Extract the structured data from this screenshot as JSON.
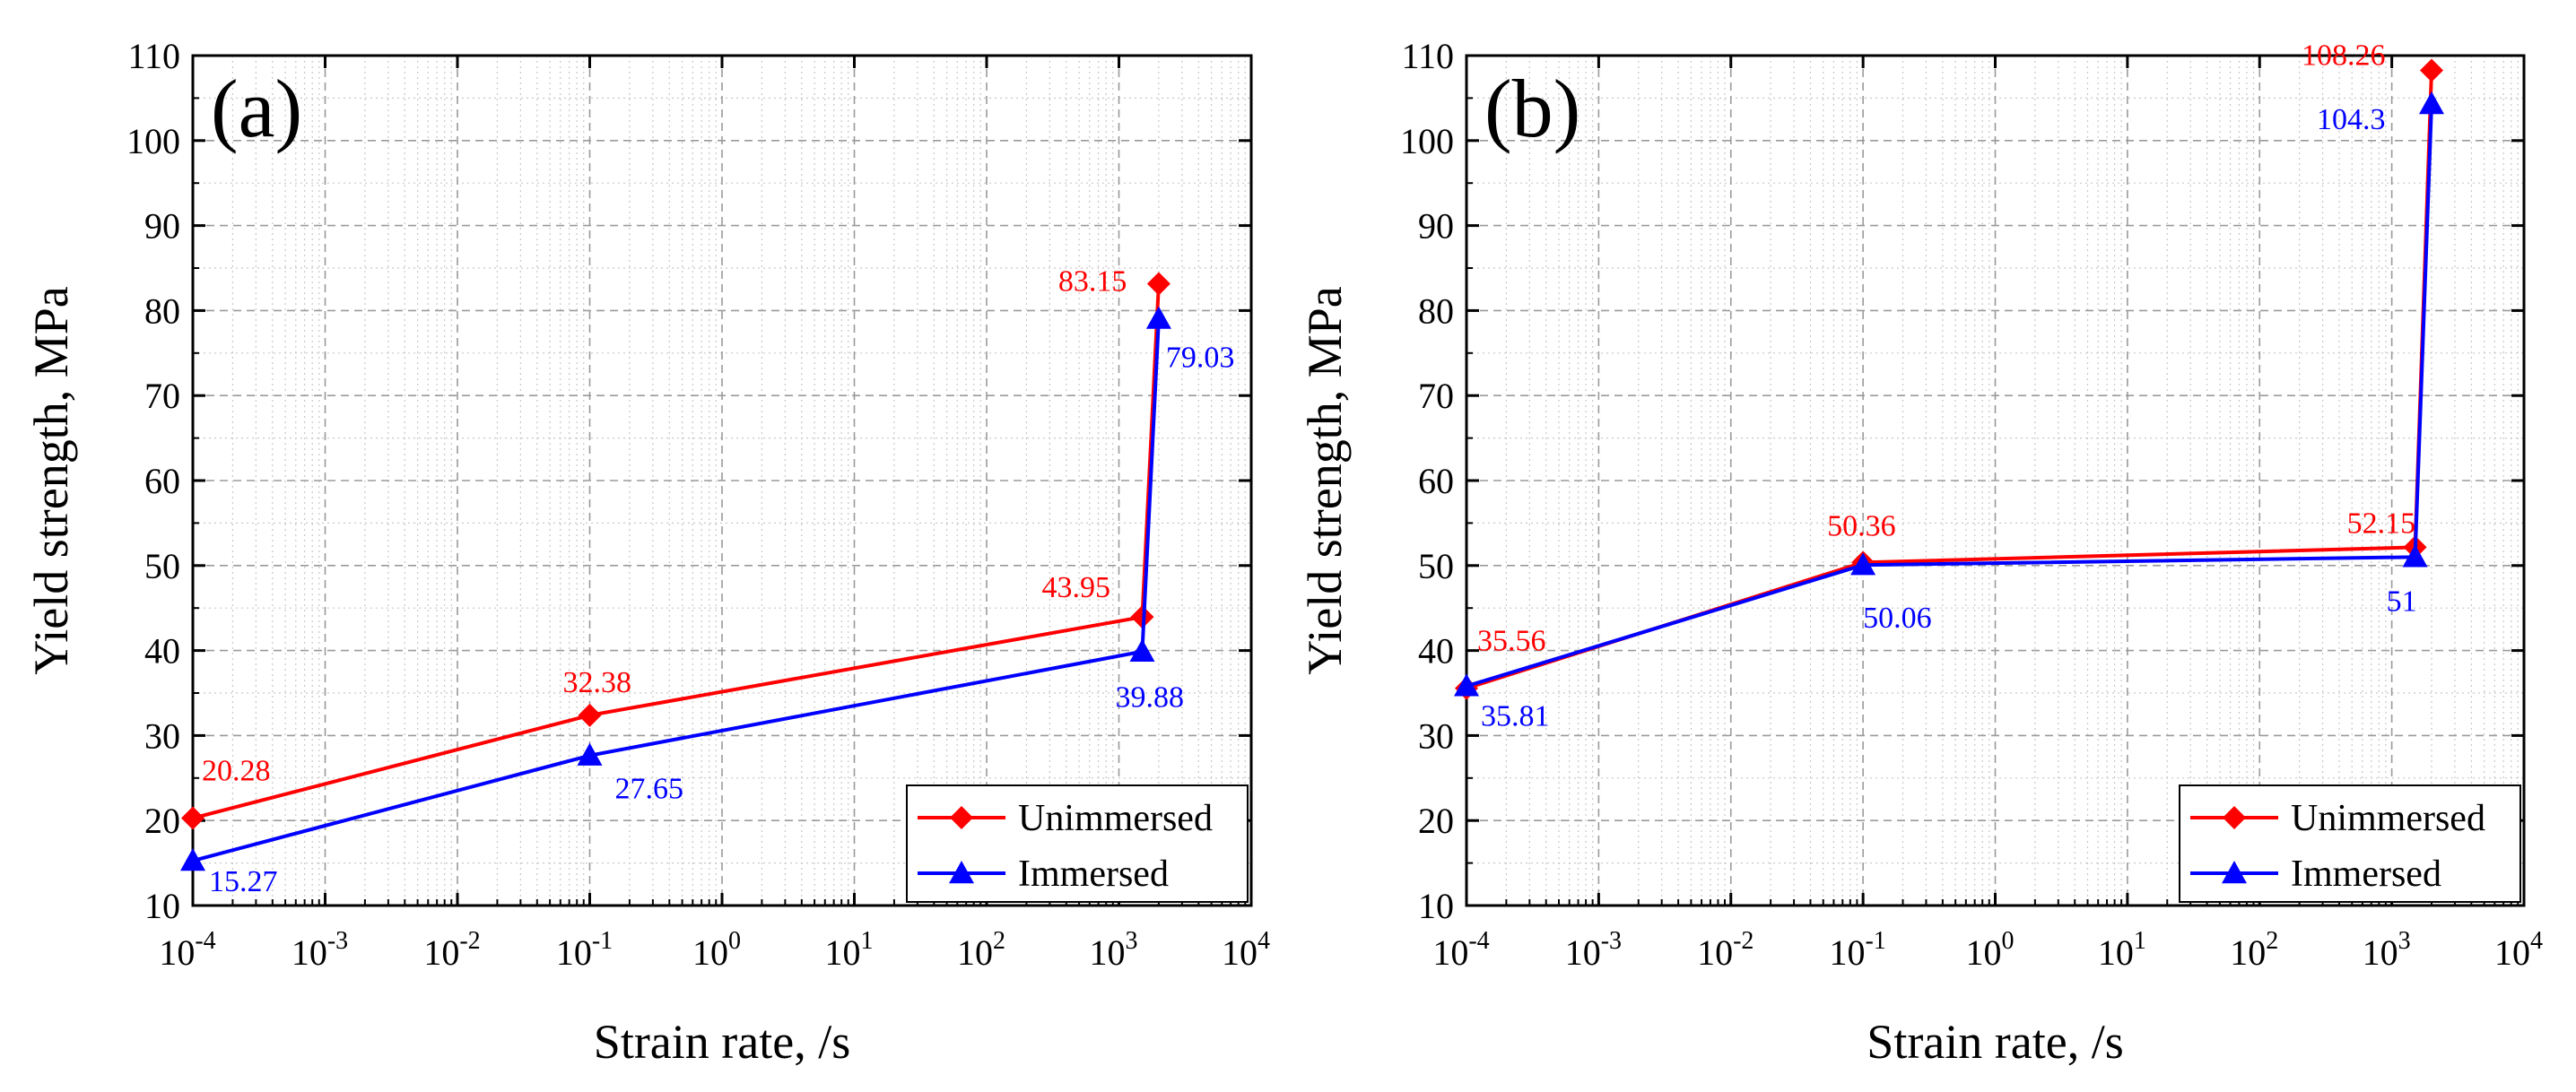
{
  "chart_data": [
    {
      "panel_label": "(a)",
      "type": "line",
      "x_scale": "log",
      "xlabel": "Strain rate, /s",
      "ylabel": "Yield strength, MPa",
      "xlim": [
        0.0001,
        10000
      ],
      "ylim": [
        10,
        110
      ],
      "x_ticks": [
        {
          "base": "10",
          "exp": "-4",
          "value": 0.0001
        },
        {
          "base": "10",
          "exp": "-3",
          "value": 0.001
        },
        {
          "base": "10",
          "exp": "-2",
          "value": 0.01
        },
        {
          "base": "10",
          "exp": "-1",
          "value": 0.1
        },
        {
          "base": "10",
          "exp": "0",
          "value": 1
        },
        {
          "base": "10",
          "exp": "1",
          "value": 10
        },
        {
          "base": "10",
          "exp": "2",
          "value": 100
        },
        {
          "base": "10",
          "exp": "3",
          "value": 1000
        },
        {
          "base": "10",
          "exp": "4",
          "value": 10000
        }
      ],
      "y_ticks": [
        "10",
        "20",
        "30",
        "40",
        "50",
        "60",
        "70",
        "80",
        "90",
        "100",
        "110"
      ],
      "grid": true,
      "legend_position": "bottom-right",
      "series": [
        {
          "name": "Unimmersed",
          "color": "#ff0000",
          "marker": "diamond",
          "points": [
            {
              "x": 0.0001,
              "y": 20.28,
              "label": "20.28"
            },
            {
              "x": 0.1,
              "y": 32.38,
              "label": "32.38"
            },
            {
              "x": 1500,
              "y": 43.95,
              "label": "43.95"
            },
            {
              "x": 2000,
              "y": 83.15,
              "label": "83.15"
            }
          ]
        },
        {
          "name": "Immersed",
          "color": "#0000ff",
          "marker": "triangle",
          "points": [
            {
              "x": 0.0001,
              "y": 15.27,
              "label": "15.27"
            },
            {
              "x": 0.1,
              "y": 27.65,
              "label": "27.65"
            },
            {
              "x": 1500,
              "y": 39.88,
              "label": "39.88"
            },
            {
              "x": 2000,
              "y": 79.03,
              "label": "79.03"
            }
          ]
        }
      ]
    },
    {
      "panel_label": "(b)",
      "type": "line",
      "x_scale": "log",
      "xlabel": "Strain rate, /s",
      "ylabel": "Yield strength, MPa",
      "xlim": [
        0.0001,
        10000
      ],
      "ylim": [
        10,
        110
      ],
      "x_ticks": [
        {
          "base": "10",
          "exp": "-4",
          "value": 0.0001
        },
        {
          "base": "10",
          "exp": "-3",
          "value": 0.001
        },
        {
          "base": "10",
          "exp": "-2",
          "value": 0.01
        },
        {
          "base": "10",
          "exp": "-1",
          "value": 0.1
        },
        {
          "base": "10",
          "exp": "0",
          "value": 1
        },
        {
          "base": "10",
          "exp": "1",
          "value": 10
        },
        {
          "base": "10",
          "exp": "2",
          "value": 100
        },
        {
          "base": "10",
          "exp": "3",
          "value": 1000
        },
        {
          "base": "10",
          "exp": "4",
          "value": 10000
        }
      ],
      "y_ticks": [
        "10",
        "20",
        "30",
        "40",
        "50",
        "60",
        "70",
        "80",
        "90",
        "100",
        "110"
      ],
      "grid": true,
      "legend_position": "bottom-right",
      "series": [
        {
          "name": "Unimmersed",
          "color": "#ff0000",
          "marker": "diamond",
          "points": [
            {
              "x": 0.0001,
              "y": 35.56,
              "label": "35.56"
            },
            {
              "x": 0.1,
              "y": 50.36,
              "label": "50.36"
            },
            {
              "x": 1500,
              "y": 52.15,
              "label": "52.15"
            },
            {
              "x": 2000,
              "y": 108.26,
              "label": "108.26"
            }
          ]
        },
        {
          "name": "Immersed",
          "color": "#0000ff",
          "marker": "triangle",
          "points": [
            {
              "x": 0.0001,
              "y": 35.81,
              "label": "35.81"
            },
            {
              "x": 0.1,
              "y": 50.06,
              "label": "50.06"
            },
            {
              "x": 1500,
              "y": 51,
              "label": "51"
            },
            {
              "x": 2000,
              "y": 104.3,
              "label": "104.3"
            }
          ]
        }
      ]
    }
  ]
}
